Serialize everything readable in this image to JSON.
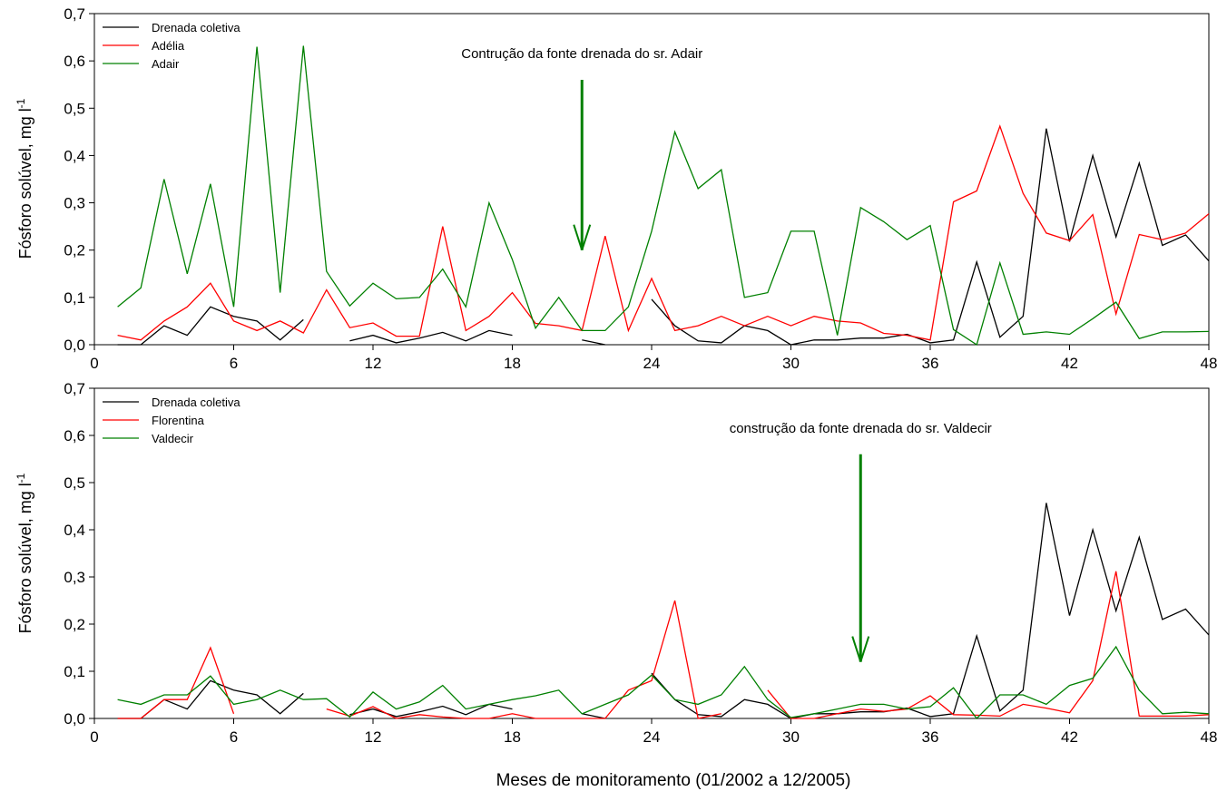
{
  "chart_data": [
    {
      "type": "line",
      "ylabel": "Fósforo solúvel, mg l",
      "ylabel_superscript": "-1",
      "xlim": [
        0,
        48
      ],
      "ylim": [
        0,
        0.7
      ],
      "x_ticks": [
        "0",
        "6",
        "12",
        "18",
        "24",
        "30",
        "36",
        "42",
        "48"
      ],
      "y_ticks": [
        "0,0",
        "0,1",
        "0,2",
        "0,3",
        "0,4",
        "0,5",
        "0,6",
        "0,7"
      ],
      "x": [
        1,
        2,
        3,
        4,
        5,
        6,
        7,
        8,
        9,
        10,
        11,
        12,
        13,
        14,
        15,
        16,
        17,
        18,
        19,
        20,
        21,
        22,
        23,
        24,
        25,
        26,
        27,
        28,
        29,
        30,
        31,
        32,
        33,
        34,
        35,
        36,
        37,
        38,
        39,
        40,
        41,
        42,
        43,
        44,
        45,
        46,
        47,
        48
      ],
      "legend_position": "top-left",
      "series": [
        {
          "name": "Drenada coletiva",
          "color": "#000000",
          "values": [
            0.0,
            0.0,
            0.04,
            0.02,
            0.08,
            0.06,
            0.05,
            0.01,
            0.053,
            null,
            0.008,
            0.02,
            0.004,
            0.014,
            0.026,
            0.008,
            0.03,
            0.02,
            null,
            null,
            0.01,
            0.0,
            null,
            0.096,
            0.04,
            0.008,
            0.004,
            0.04,
            0.03,
            0.0,
            0.01,
            0.01,
            0.014,
            0.014,
            0.022,
            0.004,
            0.01,
            0.175,
            0.016,
            0.06,
            0.457,
            0.218,
            0.4,
            0.228,
            0.384,
            0.21,
            0.232,
            0.177
          ]
        },
        {
          "name": "Adélia",
          "color": "#ff0000",
          "values": [
            0.02,
            0.01,
            0.05,
            0.08,
            0.13,
            0.05,
            0.03,
            0.05,
            0.025,
            0.116,
            0.036,
            0.046,
            0.018,
            0.018,
            0.25,
            0.03,
            0.06,
            0.11,
            0.045,
            0.04,
            0.03,
            0.23,
            0.03,
            0.14,
            0.03,
            0.04,
            0.06,
            0.04,
            0.06,
            0.04,
            0.06,
            0.05,
            0.046,
            0.024,
            0.02,
            0.01,
            0.302,
            0.325,
            0.462,
            0.32,
            0.236,
            0.22,
            0.275,
            0.065,
            0.233,
            0.222,
            0.236,
            0.277
          ]
        },
        {
          "name": "Adair",
          "color": "#008000",
          "values": [
            0.08,
            0.12,
            0.35,
            0.15,
            0.34,
            0.08,
            0.63,
            0.11,
            0.632,
            0.155,
            0.082,
            0.13,
            0.097,
            0.1,
            0.16,
            0.08,
            0.3,
            0.18,
            0.035,
            0.1,
            0.03,
            0.03,
            0.08,
            0.24,
            0.45,
            0.33,
            0.37,
            0.1,
            0.11,
            0.24,
            0.24,
            0.02,
            0.29,
            0.26,
            0.222,
            0.252,
            0.032,
            0.0,
            0.173,
            0.022,
            0.027,
            0.022,
            0.055,
            0.09,
            0.013,
            0.027,
            0.027,
            0.028
          ]
        }
      ],
      "annotations": [
        {
          "text": "Contrução da fonte drenada do sr. Adair",
          "x": 21,
          "arrow_from_y": 0.56,
          "arrow_to_y": 0.2,
          "color": "#008000"
        }
      ]
    },
    {
      "type": "line",
      "ylabel": "Fósforo solúvel, mg l",
      "ylabel_superscript": "-1",
      "xlabel": "Meses de monitoramento (01/2002 a 12/2005)",
      "xlim": [
        0,
        48
      ],
      "ylim": [
        0,
        0.7
      ],
      "x_ticks": [
        "0",
        "6",
        "12",
        "18",
        "24",
        "30",
        "36",
        "42",
        "48"
      ],
      "y_ticks": [
        "0,0",
        "0,1",
        "0,2",
        "0,3",
        "0,4",
        "0,5",
        "0,6",
        "0,7"
      ],
      "x": [
        1,
        2,
        3,
        4,
        5,
        6,
        7,
        8,
        9,
        10,
        11,
        12,
        13,
        14,
        15,
        16,
        17,
        18,
        19,
        20,
        21,
        22,
        23,
        24,
        25,
        26,
        27,
        28,
        29,
        30,
        31,
        32,
        33,
        34,
        35,
        36,
        37,
        38,
        39,
        40,
        41,
        42,
        43,
        44,
        45,
        46,
        47,
        48
      ],
      "legend_position": "top-left",
      "series": [
        {
          "name": "Drenada coletiva",
          "color": "#000000",
          "values": [
            0.0,
            0.0,
            0.04,
            0.02,
            0.08,
            0.06,
            0.05,
            0.01,
            0.053,
            null,
            0.008,
            0.02,
            0.004,
            0.014,
            0.026,
            0.008,
            0.03,
            0.02,
            null,
            null,
            0.01,
            0.0,
            null,
            0.096,
            0.04,
            0.008,
            0.004,
            0.04,
            0.03,
            0.0,
            0.01,
            0.01,
            0.014,
            0.014,
            0.022,
            0.004,
            0.01,
            0.175,
            0.016,
            0.06,
            0.457,
            0.218,
            0.4,
            0.228,
            0.384,
            0.21,
            0.232,
            0.177
          ]
        },
        {
          "name": "Florentina",
          "color": "#ff0000",
          "values": [
            0.0,
            0.0,
            0.04,
            0.04,
            0.15,
            0.01,
            null,
            null,
            null,
            0.02,
            0.005,
            0.025,
            0.0,
            0.008,
            0.003,
            0.0,
            0.0,
            0.01,
            0.0,
            0.0,
            0.0,
            0.0,
            0.06,
            0.08,
            0.25,
            0.0,
            0.01,
            null,
            0.06,
            0.0,
            0.0,
            0.01,
            0.02,
            0.015,
            0.02,
            0.048,
            0.008,
            0.007,
            0.005,
            0.03,
            0.022,
            0.012,
            0.08,
            0.312,
            0.005,
            0.005,
            0.005,
            0.008
          ]
        },
        {
          "name": "Valdecir",
          "color": "#008000",
          "values": [
            0.04,
            0.03,
            0.05,
            0.05,
            0.09,
            0.03,
            0.04,
            0.06,
            0.04,
            0.042,
            0.003,
            0.056,
            0.02,
            0.035,
            0.07,
            0.02,
            0.03,
            0.04,
            0.048,
            0.06,
            0.01,
            0.03,
            0.05,
            0.092,
            0.04,
            0.03,
            0.05,
            0.11,
            0.04,
            0.002,
            0.01,
            0.02,
            0.03,
            0.03,
            0.02,
            0.025,
            0.065,
            0.0,
            0.05,
            0.05,
            0.03,
            0.07,
            0.085,
            0.152,
            0.06,
            0.01,
            0.013,
            0.01
          ]
        }
      ],
      "annotations": [
        {
          "text": "construção da fonte drenada do sr. Valdecir",
          "x": 33,
          "arrow_from_y": 0.56,
          "arrow_to_y": 0.12,
          "color": "#008000"
        }
      ]
    }
  ]
}
